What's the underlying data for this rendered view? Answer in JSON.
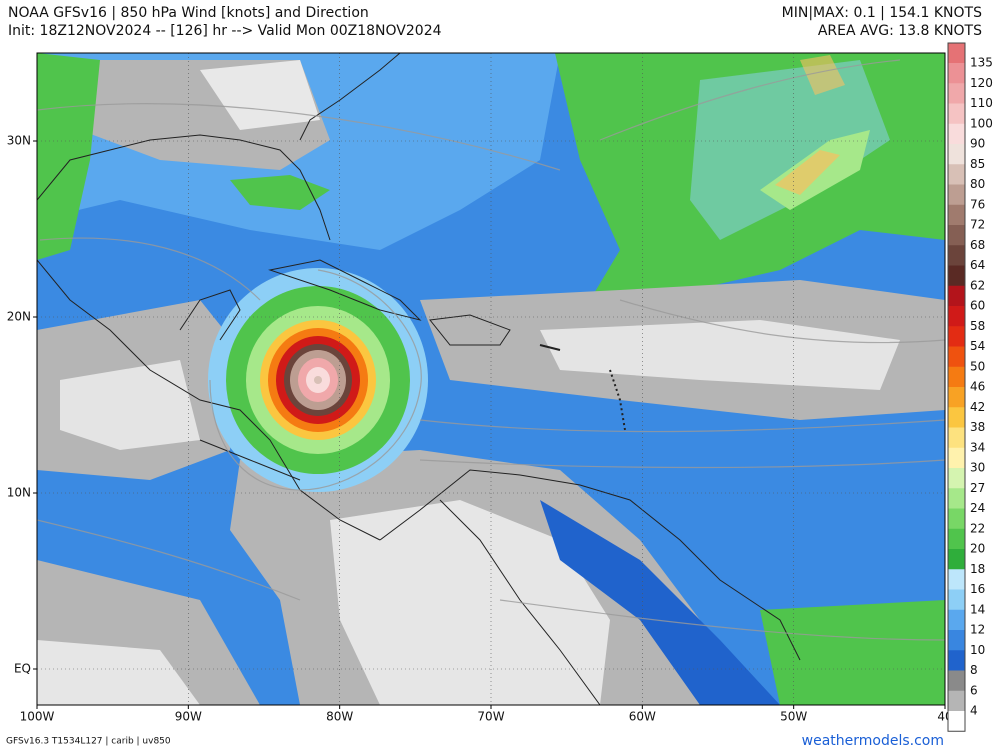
{
  "header": {
    "title": "NOAA GFSv16 |  850 hPa Wind [knots] and Direction",
    "subtitle": "Init: 18Z12NOV2024 -- [126] hr --> Valid Mon 00Z18NOV2024",
    "stats": "MIN|MAX: 0.1 | 154.1 KNOTS",
    "average": "AREA AVG: 13.8 KNOTS"
  },
  "map": {
    "lat_labels": [
      "30N",
      "20N",
      "10N",
      "EQ"
    ],
    "lon_labels": [
      "100W",
      "90W",
      "80W",
      "70W",
      "60W",
      "50W",
      "40"
    ]
  },
  "colorbar": [
    {
      "value": 135,
      "color": "#ec9195"
    },
    {
      "value": 120,
      "color": "#f0a8aa"
    },
    {
      "value": 110,
      "color": "#f5c3c3"
    },
    {
      "value": 100,
      "color": "#f9dcdc"
    },
    {
      "value": 90,
      "color": "#efe2dc"
    },
    {
      "value": 85,
      "color": "#d8c0b6"
    },
    {
      "value": 80,
      "color": "#bd9e92"
    },
    {
      "value": 76,
      "color": "#a07b6e"
    },
    {
      "value": 72,
      "color": "#855f54"
    },
    {
      "value": 68,
      "color": "#6b443b"
    },
    {
      "value": 64,
      "color": "#5a2a24"
    },
    {
      "value": 62,
      "color": "#b3141b"
    },
    {
      "value": 60,
      "color": "#d01a18"
    },
    {
      "value": 58,
      "color": "#e32c13"
    },
    {
      "value": 54,
      "color": "#ef520f"
    },
    {
      "value": 50,
      "color": "#f57b12"
    },
    {
      "value": 46,
      "color": "#f8a224"
    },
    {
      "value": 42,
      "color": "#fbc640"
    },
    {
      "value": 38,
      "color": "#fde27f"
    },
    {
      "value": 34,
      "color": "#fff2ad"
    },
    {
      "value": 30,
      "color": "#d5f4b0"
    },
    {
      "value": 27,
      "color": "#a6e88a"
    },
    {
      "value": 24,
      "color": "#78d766"
    },
    {
      "value": 22,
      "color": "#50c44c"
    },
    {
      "value": 20,
      "color": "#2fae3b"
    },
    {
      "value": 18,
      "color": "#bde6fb"
    },
    {
      "value": 16,
      "color": "#8dcff6"
    },
    {
      "value": 14,
      "color": "#5aa8ee"
    },
    {
      "value": 12,
      "color": "#3986e0"
    },
    {
      "value": 10,
      "color": "#2063cc"
    },
    {
      "value": 8,
      "color": "#8a8a8a"
    },
    {
      "value": 6,
      "color": "#b5b5b5"
    },
    {
      "value": 4,
      "color": "#ffffff"
    }
  ],
  "footer": {
    "model": "GFSv16.3 T1534L127 | carib | uv850",
    "site": "weathermodels.com"
  }
}
